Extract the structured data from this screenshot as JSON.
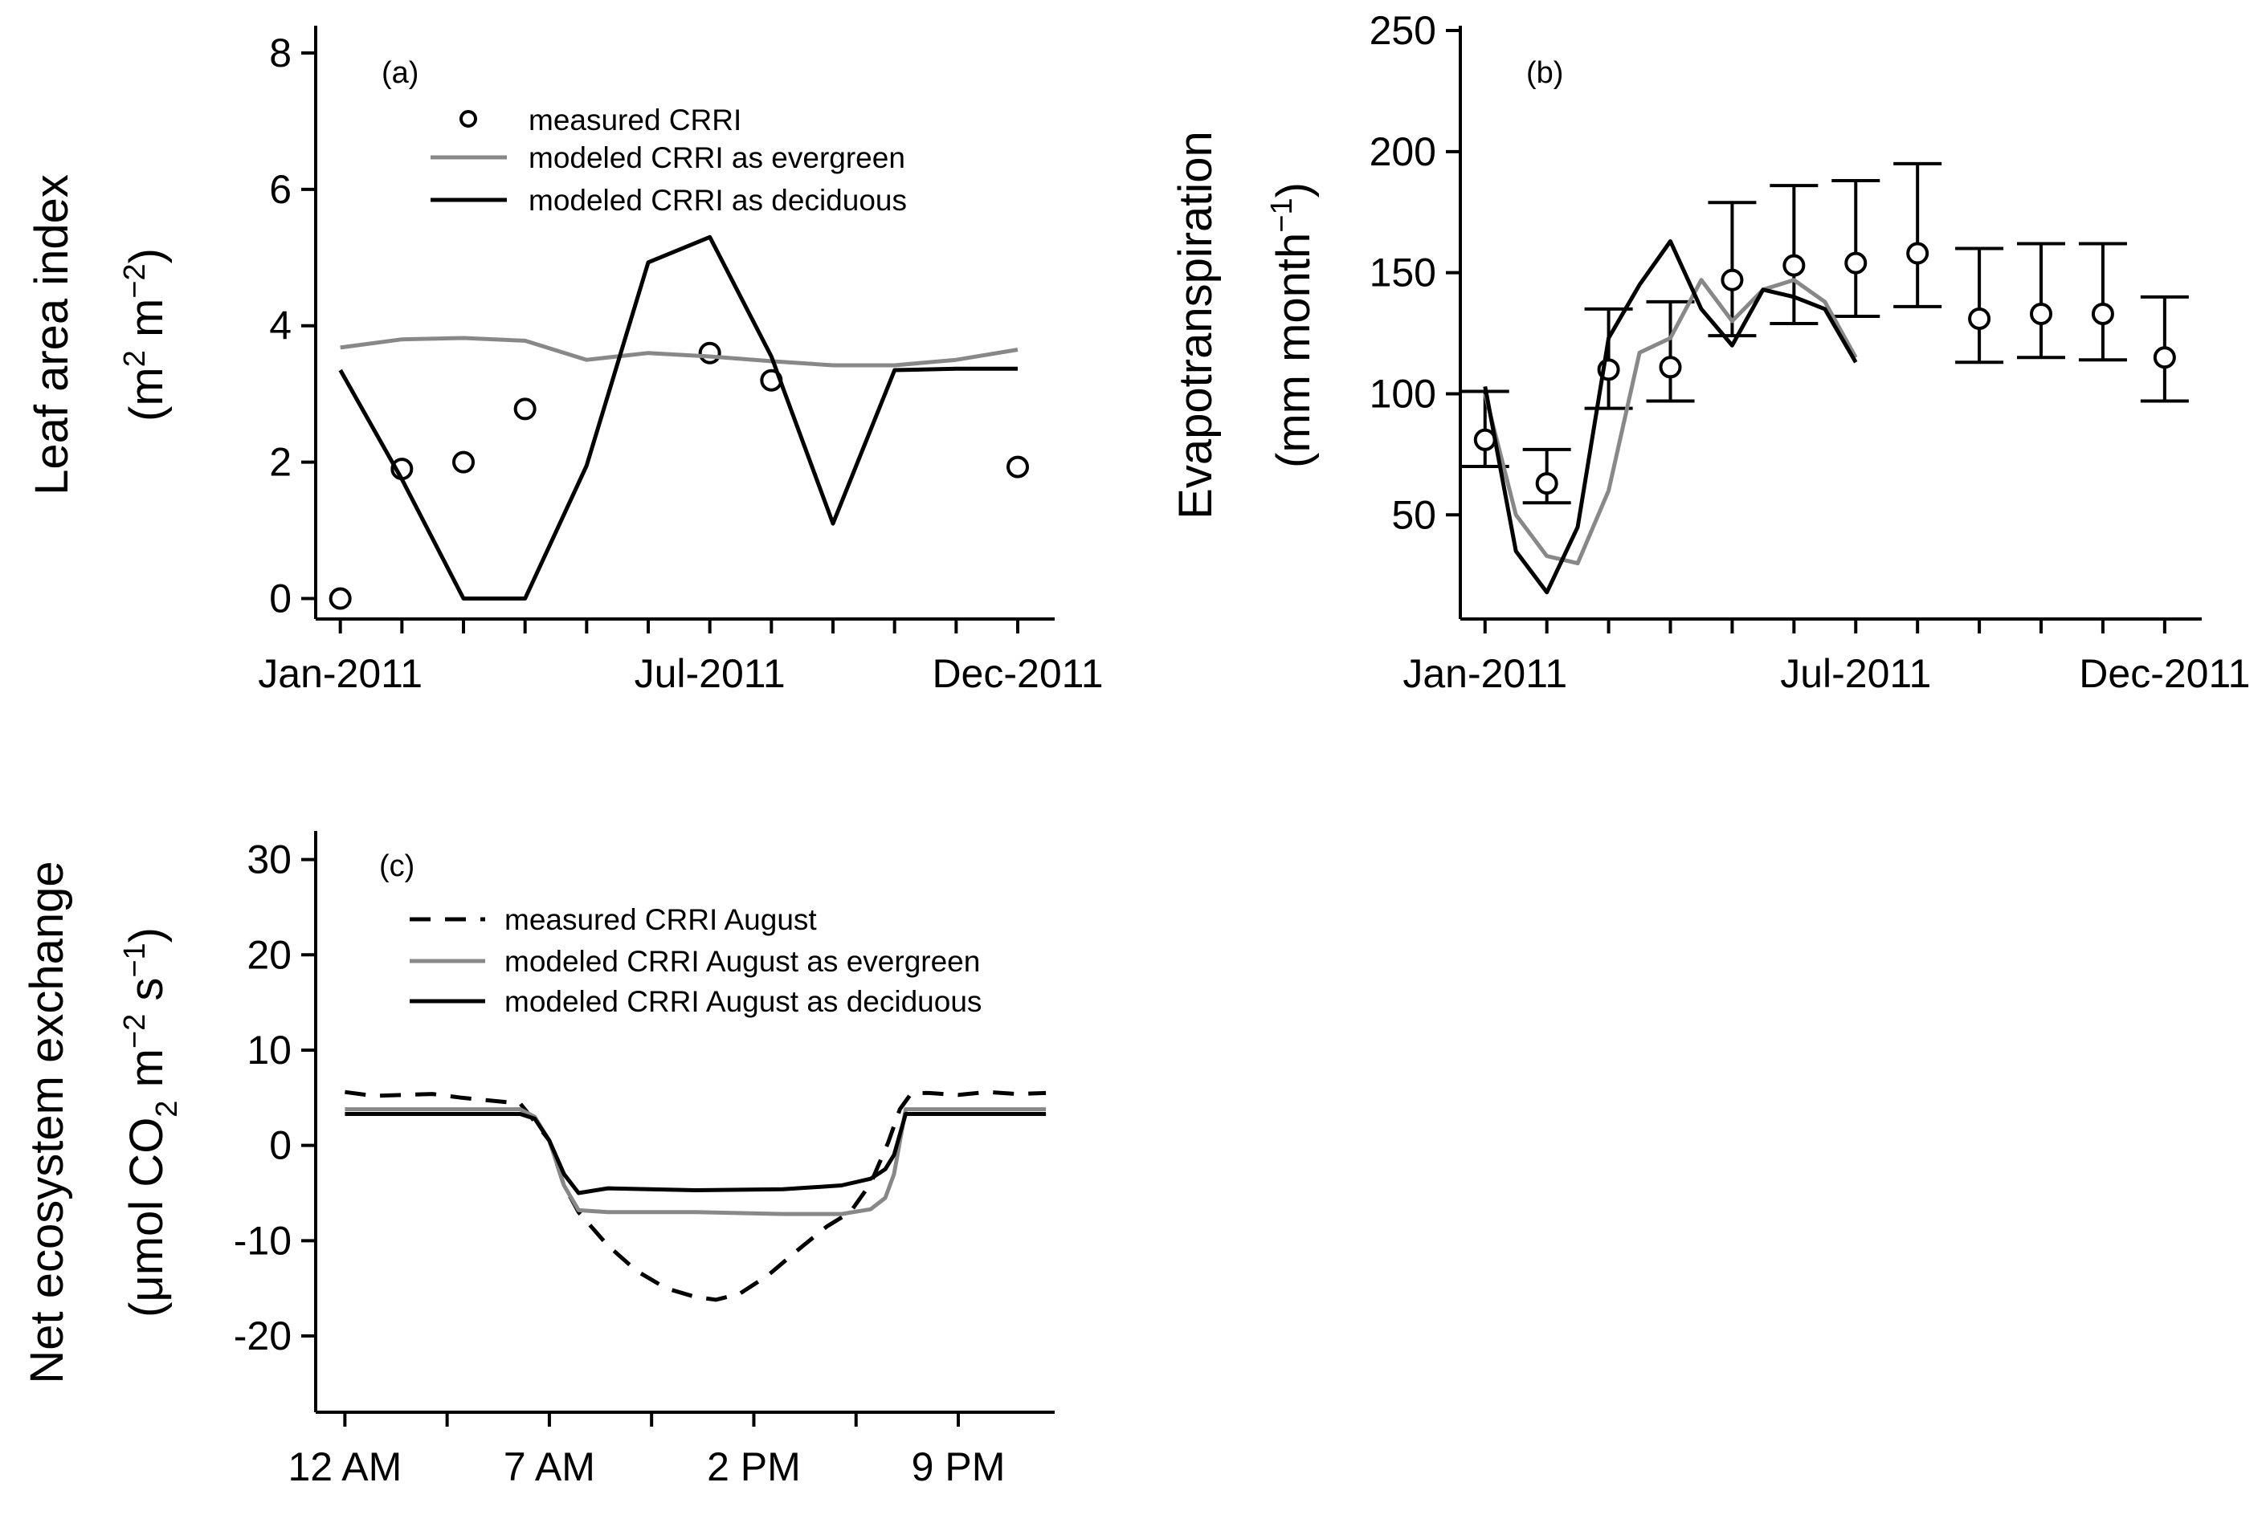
{
  "colors": {
    "axis": "#000000",
    "evergreen": "#888888",
    "deciduous": "#000000",
    "measured": "#000000"
  },
  "chart_data": [
    {
      "id": "a",
      "type": "line",
      "panel_label": "(a)",
      "ylabel_line1": "Leaf area index",
      "ylabel_line2": "(m",
      "ylabel_sup1": "2",
      "ylabel_mid": " m",
      "ylabel_sup2": "−2",
      "ylabel_end": ")",
      "x_tick_labels": [
        "Jan-2011",
        "Jul-2011",
        "Dec-2011"
      ],
      "x_tick_months": [
        1,
        7,
        12
      ],
      "xlim": [
        0.6,
        12.6
      ],
      "ylim": [
        -0.3,
        8.4
      ],
      "yticks": [
        0,
        2,
        4,
        6,
        8
      ],
      "legend_position": "top-center",
      "series": [
        {
          "name": "measured CRRI",
          "style": "circle",
          "points": [
            [
              1,
              0.0
            ],
            [
              2,
              1.9
            ],
            [
              3,
              2.0
            ],
            [
              4,
              2.78
            ],
            [
              7,
              3.6
            ],
            [
              8,
              3.2
            ],
            [
              12,
              1.93
            ]
          ]
        },
        {
          "name": "modeled CRRI as evergreen",
          "style": "gray",
          "points": [
            [
              1,
              3.68
            ],
            [
              2,
              3.8
            ],
            [
              3,
              3.82
            ],
            [
              4,
              3.78
            ],
            [
              5,
              3.5
            ],
            [
              6,
              3.6
            ],
            [
              7,
              3.55
            ],
            [
              8,
              3.48
            ],
            [
              9,
              3.42
            ],
            [
              10,
              3.42
            ],
            [
              11,
              3.5
            ],
            [
              12,
              3.65
            ]
          ]
        },
        {
          "name": "modeled CRRI as deciduous",
          "style": "black",
          "points": [
            [
              1,
              3.35
            ],
            [
              2,
              1.75
            ],
            [
              3,
              0.0
            ],
            [
              4,
              0.0
            ],
            [
              5,
              1.95
            ],
            [
              6,
              4.93
            ],
            [
              7,
              5.3
            ],
            [
              8,
              3.55
            ],
            [
              9,
              1.1
            ],
            [
              10,
              3.35
            ],
            [
              11,
              3.37
            ],
            [
              12,
              3.37
            ]
          ]
        }
      ]
    },
    {
      "id": "b",
      "type": "line",
      "panel_label": "(b)",
      "ylabel_line1": "Evapotranspiration",
      "ylabel_line2": "(mm month",
      "ylabel_sup1": "−1",
      "ylabel_end": ")",
      "x_tick_labels": [
        "Jan-2011",
        "Jul-2011",
        "Dec-2011"
      ],
      "x_tick_months": [
        1,
        7,
        12
      ],
      "xlim": [
        0.6,
        12.6
      ],
      "ylim": [
        7,
        252
      ],
      "yticks": [
        50,
        100,
        150,
        200,
        250
      ],
      "series": [
        {
          "name": "measured",
          "style": "circle_errorbar",
          "points": [
            [
              1,
              81,
              70,
              101
            ],
            [
              2,
              63,
              55,
              77
            ],
            [
              3,
              110,
              94,
              135
            ],
            [
              4,
              111,
              97,
              138
            ],
            [
              5,
              147,
              124,
              179
            ],
            [
              6,
              153,
              129,
              186
            ],
            [
              7,
              154,
              132,
              188
            ],
            [
              8,
              158,
              136,
              195
            ],
            [
              9,
              131,
              113,
              160
            ],
            [
              10,
              133,
              115,
              162
            ],
            [
              11,
              133,
              114,
              162
            ],
            [
              12,
              115,
              97,
              140
            ]
          ]
        },
        {
          "name": "modeled evergreen",
          "style": "gray",
          "points": [
            [
              1,
              100
            ],
            [
              1.5,
              50
            ],
            [
              2,
              33
            ],
            [
              2.5,
              30
            ],
            [
              3,
              60
            ],
            [
              3.5,
              117
            ],
            [
              4,
              123
            ],
            [
              4.5,
              147
            ],
            [
              5,
              130
            ],
            [
              5.5,
              143
            ],
            [
              6,
              147
            ],
            [
              6.5,
              138
            ],
            [
              7,
              115
            ]
          ]
        },
        {
          "name": "modeled deciduous",
          "style": "black",
          "points": [
            [
              1,
              103
            ],
            [
              1.5,
              35
            ],
            [
              2,
              18
            ],
            [
              2.5,
              45
            ],
            [
              3,
              123
            ],
            [
              3.5,
              145
            ],
            [
              4,
              163
            ],
            [
              4.5,
              135
            ],
            [
              5,
              120
            ],
            [
              5.5,
              143
            ],
            [
              6,
              140
            ],
            [
              6.5,
              135
            ],
            [
              7,
              113
            ]
          ]
        }
      ]
    },
    {
      "id": "c",
      "type": "line",
      "panel_label": "(c)",
      "ylabel_line1": "Net ecosystem exchange",
      "ylabel_line2": "(μmol CO",
      "ylabel_sub": "2",
      "ylabel_mid": " m",
      "ylabel_sup1": "−2",
      "ylabel_mid2": " s",
      "ylabel_sup2": "−1",
      "ylabel_end": ")",
      "x_tick_labels": [
        "12 AM",
        "7 AM",
        "2 PM",
        "9 PM"
      ],
      "x_tick_hours": [
        0,
        7,
        14,
        21
      ],
      "xlim": [
        -1,
        24.3
      ],
      "ylim": [
        -28,
        33
      ],
      "yticks": [
        -20,
        -10,
        0,
        10,
        20,
        30
      ],
      "legend_position": "top-center",
      "series": [
        {
          "name": "measured CRRI August",
          "style": "dashed",
          "points": [
            [
              0,
              5.6
            ],
            [
              1,
              5.2
            ],
            [
              2,
              5.3
            ],
            [
              3,
              5.4
            ],
            [
              4,
              5.0
            ],
            [
              5,
              4.7
            ],
            [
              6,
              4.4
            ],
            [
              6.5,
              2.5
            ],
            [
              7,
              0.5
            ],
            [
              7.5,
              -4.2
            ],
            [
              8,
              -7.0
            ],
            [
              9,
              -10.5
            ],
            [
              10,
              -13.2
            ],
            [
              11,
              -15.0
            ],
            [
              12,
              -15.9
            ],
            [
              12.7,
              -16.2
            ],
            [
              13.5,
              -15.6
            ],
            [
              14.5,
              -13.6
            ],
            [
              15.5,
              -11.0
            ],
            [
              16.5,
              -8.5
            ],
            [
              17.3,
              -7.0
            ],
            [
              18,
              -4.0
            ],
            [
              18.6,
              0.3
            ],
            [
              19,
              3.8
            ],
            [
              19.4,
              5.5
            ],
            [
              20,
              5.5
            ],
            [
              21,
              5.3
            ],
            [
              22,
              5.6
            ],
            [
              23,
              5.4
            ],
            [
              24,
              5.5
            ]
          ]
        },
        {
          "name": "modeled CRRI August as evergreen",
          "style": "gray",
          "points": [
            [
              0,
              3.8
            ],
            [
              6,
              3.8
            ],
            [
              6.5,
              3.0
            ],
            [
              7,
              0.5
            ],
            [
              7.5,
              -4.2
            ],
            [
              8,
              -6.8
            ],
            [
              9,
              -7.0
            ],
            [
              10,
              -7.0
            ],
            [
              12,
              -7.0
            ],
            [
              15,
              -7.2
            ],
            [
              17,
              -7.2
            ],
            [
              18,
              -6.7
            ],
            [
              18.5,
              -5.5
            ],
            [
              18.8,
              -3.0
            ],
            [
              19.2,
              3.8
            ],
            [
              24,
              3.8
            ]
          ]
        },
        {
          "name": "modeled CRRI August as deciduous",
          "style": "black",
          "points": [
            [
              0,
              3.3
            ],
            [
              6,
              3.3
            ],
            [
              6.5,
              2.8
            ],
            [
              7,
              0.5
            ],
            [
              7.5,
              -3.0
            ],
            [
              8,
              -5.0
            ],
            [
              9,
              -4.5
            ],
            [
              12,
              -4.7
            ],
            [
              15,
              -4.6
            ],
            [
              17,
              -4.2
            ],
            [
              18,
              -3.5
            ],
            [
              18.5,
              -2.5
            ],
            [
              18.8,
              -1.0
            ],
            [
              19.2,
              3.3
            ],
            [
              24,
              3.3
            ]
          ]
        }
      ]
    }
  ]
}
